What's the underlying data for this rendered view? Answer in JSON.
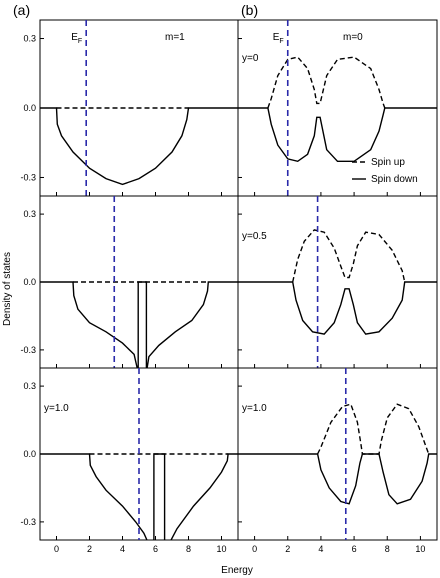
{
  "chart_data": {
    "type": "line",
    "xlabel": "Energy",
    "ylabel": "Density of states",
    "column_labels": [
      "(a)",
      "(b)"
    ],
    "x_ticks": [
      0,
      2,
      4,
      6,
      8,
      10
    ],
    "xlim": [
      -1,
      11
    ],
    "y_ticks": [
      -0.3,
      0.0,
      0.3
    ],
    "y_tick_labels": [
      "-0.3",
      "0.0",
      "0.3"
    ],
    "ylim": [
      -0.38,
      0.38
    ],
    "fermi_label": "E",
    "fermi_sub": "F",
    "fermi_color": "#2a2aaa",
    "legend": {
      "placement": "right",
      "entries": [
        {
          "style": "dash",
          "label": "Spin up"
        },
        {
          "style": "solid",
          "label": "Spin down"
        }
      ]
    },
    "panels": [
      {
        "row": 0,
        "col": 0,
        "annotation": "m=1",
        "show_fermi_label": true,
        "ef": 1.8,
        "series": [
          {
            "style": "solid",
            "x": [
              -1,
              0,
              0.05,
              0.3,
              1,
              2,
              3,
              4,
              5,
              6,
              7,
              7.6,
              7.9,
              8,
              11
            ],
            "y": [
              0,
              0,
              -0.07,
              -0.12,
              -0.19,
              -0.26,
              -0.305,
              -0.33,
              -0.305,
              -0.26,
              -0.19,
              -0.12,
              -0.05,
              0,
              0
            ]
          },
          {
            "style": "dash",
            "x": [
              0,
              8
            ],
            "y": [
              0,
              0
            ]
          }
        ]
      },
      {
        "row": 1,
        "col": 0,
        "annotation": "",
        "show_fermi_label": false,
        "ef": 3.5,
        "series": [
          {
            "style": "solid",
            "x": [
              -1,
              1.0,
              1.05,
              1.3,
              2,
              3,
              4,
              4.7,
              4.95,
              4.95,
              5.45,
              5.45,
              5.6,
              6.2,
              7.2,
              8.2,
              8.9,
              9.15,
              9.2,
              11
            ],
            "y": [
              0,
              0,
              -0.06,
              -0.12,
              -0.18,
              -0.22,
              -0.27,
              -0.32,
              -0.4,
              0,
              0,
              -0.4,
              -0.33,
              -0.28,
              -0.22,
              -0.17,
              -0.1,
              -0.04,
              0,
              0
            ]
          },
          {
            "style": "dash",
            "x": [
              1.0,
              9.2
            ],
            "y": [
              0,
              0
            ]
          }
        ]
      },
      {
        "row": 2,
        "col": 0,
        "annotation": "y=1.0",
        "show_fermi_label": false,
        "ef": 5.0,
        "series": [
          {
            "style": "solid",
            "x": [
              -1,
              2.0,
              2.05,
              2.4,
              3,
              4,
              4.8,
              5.3,
              5.6,
              5.9,
              5.9,
              6.55,
              6.55,
              6.8,
              7.3,
              8.3,
              9.3,
              10.0,
              10.35,
              10.4,
              11
            ],
            "y": [
              0,
              0,
              -0.05,
              -0.1,
              -0.16,
              -0.23,
              -0.3,
              -0.35,
              -0.4,
              -0.4,
              0,
              0,
              -0.4,
              -0.4,
              -0.33,
              -0.23,
              -0.15,
              -0.08,
              -0.03,
              0,
              0
            ]
          },
          {
            "style": "dash",
            "x": [
              2.0,
              10.4
            ],
            "y": [
              0,
              0
            ]
          }
        ]
      },
      {
        "row": 0,
        "col": 1,
        "annotation": "m=0",
        "annotation2": "y=0",
        "show_fermi_label": true,
        "ef": 2.0,
        "series": [
          {
            "style": "solid",
            "x": [
              -1,
              0.8,
              1.0,
              1.4,
              2.0,
              2.6,
              3.2,
              3.6,
              3.75,
              3.95,
              4.35,
              5.0,
              6.0,
              7.0,
              7.5,
              7.75,
              7.85,
              11
            ],
            "y": [
              0,
              0,
              -0.07,
              -0.16,
              -0.22,
              -0.23,
              -0.2,
              -0.12,
              -0.04,
              -0.04,
              -0.18,
              -0.23,
              -0.23,
              -0.18,
              -0.1,
              -0.03,
              0,
              0
            ]
          },
          {
            "style": "dash",
            "x": [
              0.8,
              1.0,
              1.4,
              2.0,
              2.6,
              3.2,
              3.6,
              3.75,
              3.95,
              4.35,
              5.0,
              6.0,
              7.0,
              7.5,
              7.75,
              7.85
            ],
            "y": [
              0,
              0.04,
              0.14,
              0.21,
              0.22,
              0.17,
              0.08,
              0.02,
              0.02,
              0.14,
              0.21,
              0.22,
              0.17,
              0.08,
              0.02,
              0
            ]
          }
        ]
      },
      {
        "row": 1,
        "col": 1,
        "annotation": "y=0.5",
        "show_fermi_label": false,
        "ef": 3.8,
        "series": [
          {
            "style": "solid",
            "x": [
              -1,
              2.3,
              2.5,
              2.9,
              3.5,
              4.2,
              4.8,
              5.2,
              5.45,
              5.7,
              5.95,
              6.2,
              6.7,
              7.5,
              8.3,
              8.9,
              9.05,
              11
            ],
            "y": [
              0,
              0,
              -0.08,
              -0.17,
              -0.22,
              -0.23,
              -0.18,
              -0.1,
              -0.03,
              -0.03,
              -0.1,
              -0.18,
              -0.23,
              -0.22,
              -0.16,
              -0.08,
              0,
              0
            ]
          },
          {
            "style": "dash",
            "x": [
              2.3,
              2.6,
              3.0,
              3.6,
              4.2,
              4.8,
              5.2,
              5.45,
              5.7,
              5.95,
              6.2,
              6.7,
              7.5,
              8.3,
              8.9,
              9.05
            ],
            "y": [
              0,
              0.1,
              0.18,
              0.23,
              0.22,
              0.15,
              0.07,
              0.02,
              0.02,
              0.08,
              0.16,
              0.22,
              0.21,
              0.14,
              0.05,
              0
            ]
          }
        ]
      },
      {
        "row": 2,
        "col": 1,
        "annotation": "y=1.0",
        "show_fermi_label": false,
        "ef": 5.5,
        "series": [
          {
            "style": "solid",
            "x": [
              -1,
              3.8,
              4.0,
              4.5,
              5.2,
              5.7,
              6.1,
              6.35,
              6.5,
              7.5,
              7.75,
              8.1,
              8.6,
              9.4,
              10.1,
              10.4,
              10.5,
              11
            ],
            "y": [
              0,
              0,
              -0.07,
              -0.15,
              -0.21,
              -0.22,
              -0.14,
              -0.04,
              0,
              0,
              -0.08,
              -0.18,
              -0.22,
              -0.2,
              -0.12,
              -0.04,
              0,
              0
            ]
          },
          {
            "style": "dash",
            "x": [
              3.8,
              4.0,
              4.6,
              5.3,
              5.8,
              6.2,
              6.4,
              6.5,
              7.5,
              7.65,
              8.0,
              8.6,
              9.3,
              9.9,
              10.35,
              10.5
            ],
            "y": [
              0,
              0.03,
              0.14,
              0.21,
              0.22,
              0.14,
              0.05,
              0,
              0,
              0.06,
              0.16,
              0.22,
              0.2,
              0.12,
              0.03,
              0
            ]
          }
        ]
      }
    ]
  }
}
